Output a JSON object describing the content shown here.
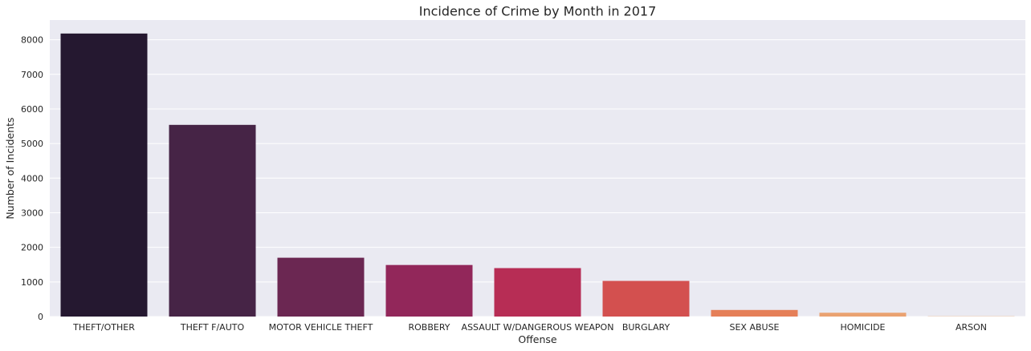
{
  "chart_data": {
    "type": "bar",
    "title": "Incidence of Crime by Month in 2017",
    "xlabel": "Offense",
    "ylabel": "Number of Incidents",
    "categories": [
      "THEFT/OTHER",
      "THEFT F/AUTO",
      "MOTOR VEHICLE THEFT",
      "ROBBERY",
      "ASSAULT W/DANGEROUS WEAPON",
      "BURGLARY",
      "SEX ABUSE",
      "HOMICIDE",
      "ARSON"
    ],
    "values": [
      8180,
      5540,
      1700,
      1490,
      1400,
      1030,
      190,
      110,
      10
    ],
    "ylim": [
      0,
      8570
    ],
    "yticks": [
      0,
      1000,
      2000,
      3000,
      4000,
      5000,
      6000,
      7000,
      8000
    ],
    "grid": true,
    "legend": "none",
    "colors": [
      "#251830",
      "#462446",
      "#6b2752",
      "#92275a",
      "#b72d55",
      "#d3504f",
      "#e57f58",
      "#eaa271",
      "#f0c8a0"
    ],
    "background": "#eaeaf2"
  }
}
